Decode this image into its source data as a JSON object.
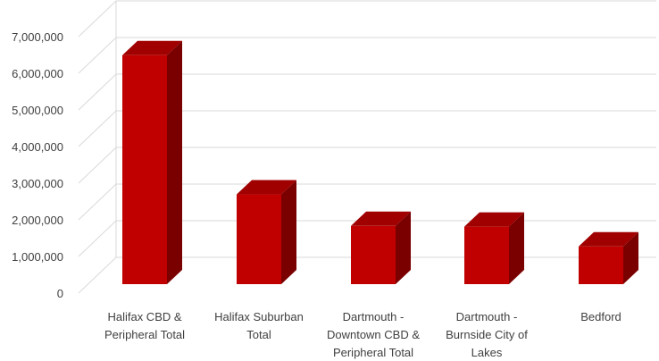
{
  "chart_data": {
    "type": "bar",
    "style": "3d-column",
    "categories": [
      [
        "Halifax CBD &",
        "Peripheral Total"
      ],
      [
        "Halifax Suburban",
        "Total"
      ],
      [
        "Dartmouth -",
        "Downtown CBD &",
        "Peripheral Total"
      ],
      [
        "Dartmouth -",
        "Burnside City of",
        "Lakes"
      ],
      [
        "Bedford"
      ]
    ],
    "series": [
      {
        "values": [
          6250000,
          2450000,
          1590000,
          1570000,
          1030000
        ]
      }
    ],
    "ylim": [
      0,
      7000000
    ],
    "y_ticks": [
      "0",
      "1,000,000",
      "2,000,000",
      "3,000,000",
      "4,000,000",
      "5,000,000",
      "6,000,000",
      "7,000,000"
    ],
    "grid": true,
    "legend": "none",
    "colors": {
      "front": "#c00000",
      "side": "#7a0000",
      "top": "#a00000",
      "grid": "#d9d9d9"
    }
  }
}
